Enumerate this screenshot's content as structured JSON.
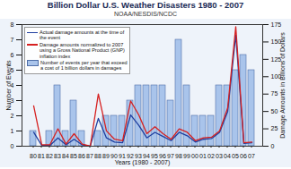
{
  "chart_data": {
    "type": "bar",
    "title": "Billion Dollar U.S. Weather Disasters 1980 - 2007",
    "subtitle": "NOAA/NESDIS/NCDC",
    "xlabel": "Years (1980 - 2007)",
    "ylabel": "Number of Events",
    "y2label": "Damage Amounts in Billions of Dollars",
    "categories": [
      "80",
      "81",
      "82",
      "83",
      "84",
      "85",
      "86",
      "87",
      "88",
      "89",
      "90",
      "91",
      "92",
      "93",
      "94",
      "95",
      "96",
      "97",
      "98",
      "99",
      "00",
      "01",
      "02",
      "03",
      "04",
      "05",
      "06",
      "07"
    ],
    "series": [
      {
        "name": "Number of events per year that exceed a cost of 1 billion dollars in damages",
        "type": "bar",
        "color": "#a9c4eb",
        "values": [
          1,
          0,
          1,
          4,
          1,
          3,
          1,
          0,
          1,
          2,
          2,
          2,
          3,
          4,
          4,
          4,
          4,
          3,
          7,
          4,
          2,
          2,
          2,
          4,
          4,
          5,
          6,
          5
        ]
      },
      {
        "name": "Actual damage amounts at the time of the event",
        "type": "line",
        "axis": "y2",
        "color": "#1f3f9f",
        "values": [
          20,
          1,
          1,
          12,
          2,
          10,
          2,
          0,
          40,
          12,
          6,
          5,
          45,
          30,
          12,
          20,
          14,
          8,
          20,
          15,
          6,
          10,
          11,
          20,
          50,
          160,
          4,
          5
        ]
      },
      {
        "name": "Damage amounts normalized to 2007 using a Gross National Product (GNP) inflation index",
        "type": "line",
        "axis": "y2",
        "color": "#d62020",
        "values": [
          58,
          2,
          2,
          25,
          3,
          18,
          3,
          0,
          75,
          22,
          10,
          8,
          65,
          45,
          18,
          28,
          18,
          10,
          25,
          20,
          8,
          12,
          13,
          22,
          55,
          172,
          5,
          6
        ]
      }
    ],
    "ylim": [
      0,
      8
    ],
    "yticks": [
      0,
      1,
      2,
      3,
      4,
      5,
      6,
      7,
      8
    ],
    "y2lim": [
      0,
      175
    ],
    "y2ticks": [
      0,
      25,
      50,
      75,
      100,
      125,
      150,
      175
    ],
    "grid": false,
    "legend": "upper left"
  }
}
